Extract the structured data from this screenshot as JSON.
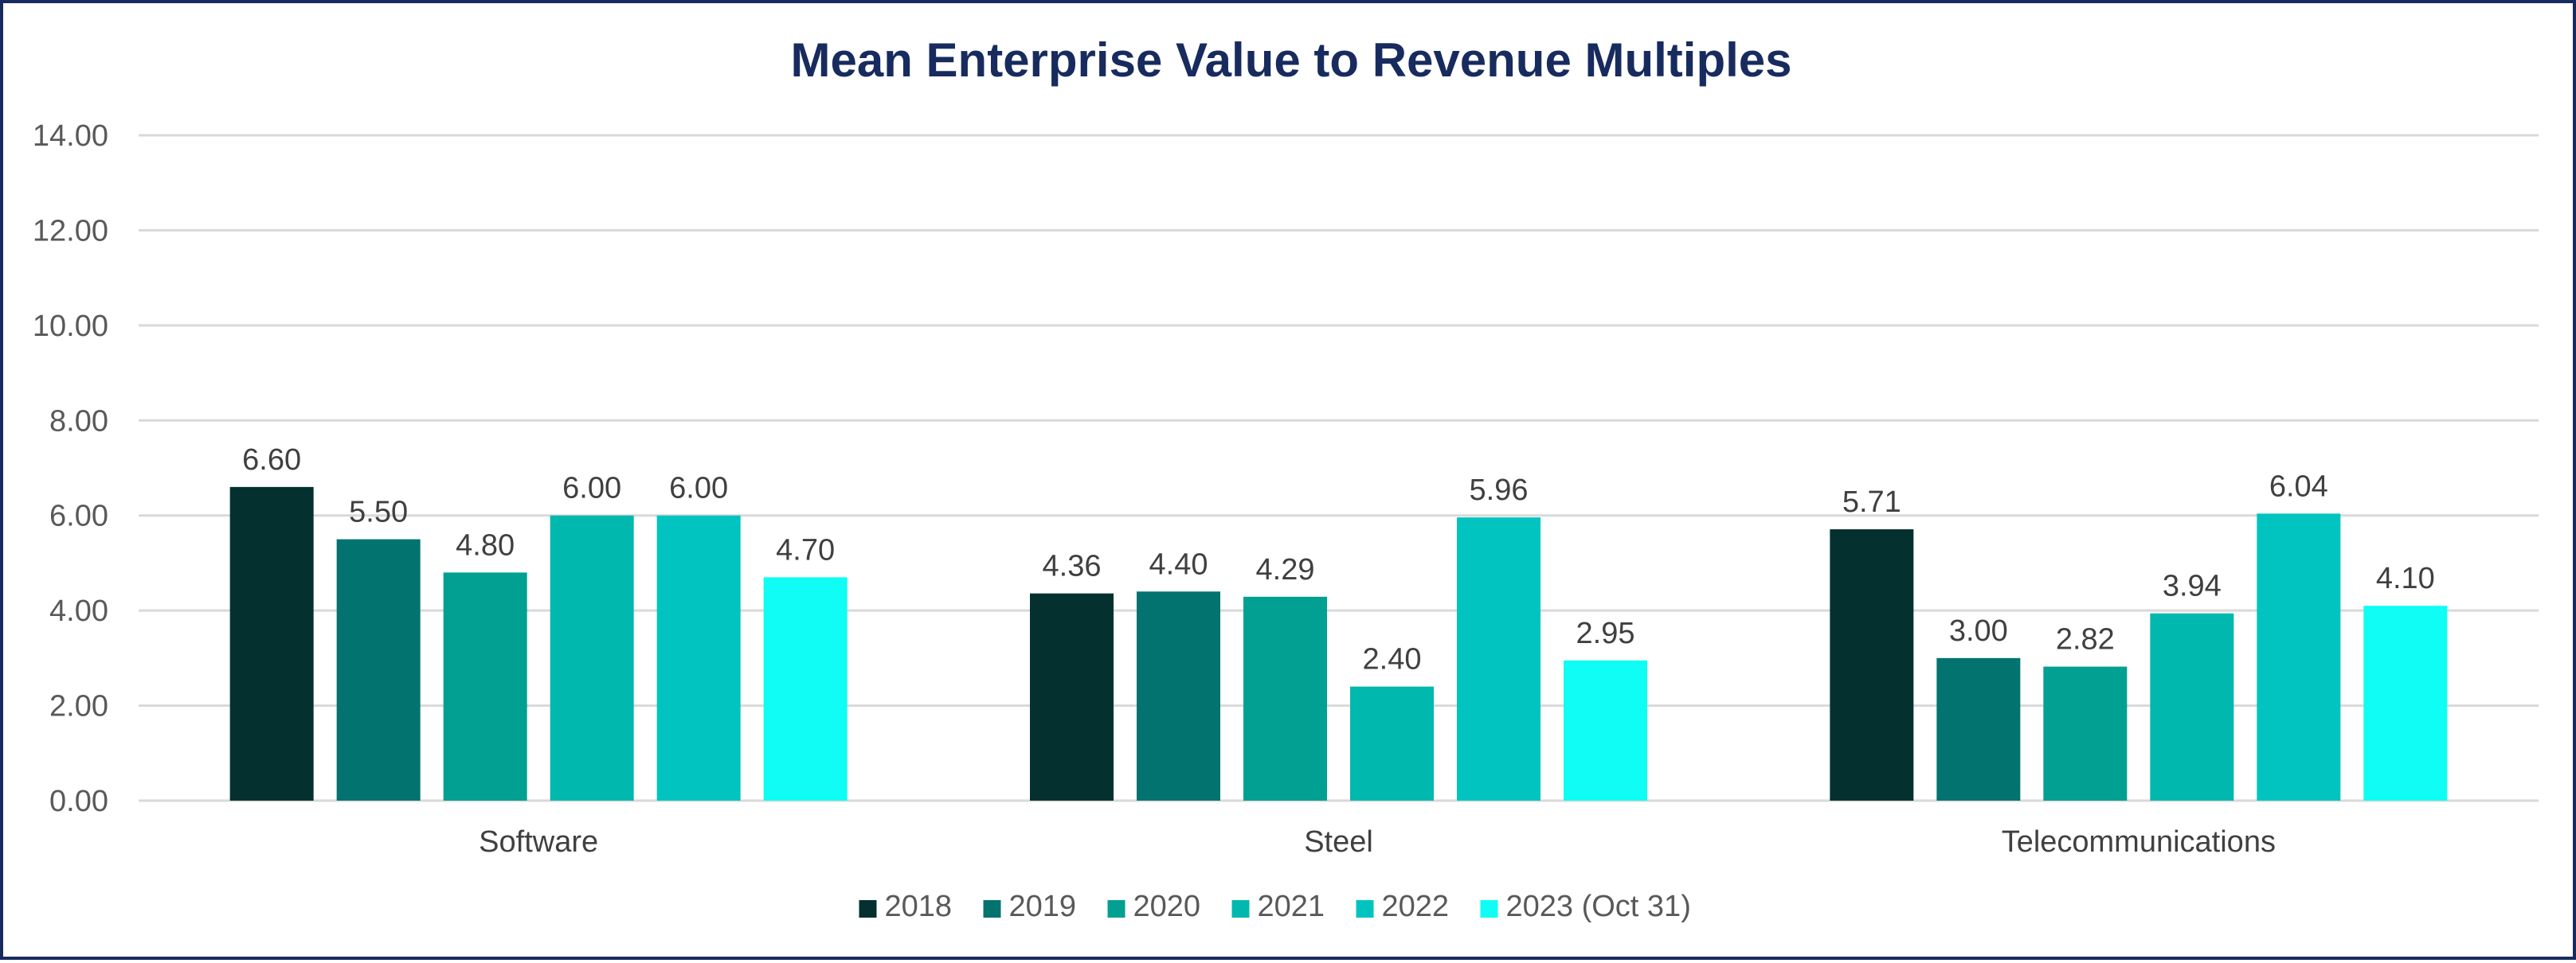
{
  "chart_data": {
    "type": "bar",
    "title": "Mean Enterprise Value to Revenue Multiples",
    "xlabel": "",
    "ylabel": "",
    "ylim": [
      0,
      14
    ],
    "yticks": [
      0,
      2,
      4,
      6,
      8,
      10,
      12,
      14
    ],
    "ytick_labels": [
      "0.00",
      "2.00",
      "4.00",
      "6.00",
      "8.00",
      "10.00",
      "12.00",
      "14.00"
    ],
    "grid": true,
    "legend_position": "bottom",
    "categories": [
      "Software",
      "Steel",
      "Telecommunications"
    ],
    "series": [
      {
        "name": "2018",
        "color": "#04312f",
        "values": [
          6.6,
          4.36,
          5.71
        ],
        "labels": [
          "6.60",
          "4.36",
          "5.71"
        ]
      },
      {
        "name": "2019",
        "color": "#037370",
        "values": [
          5.5,
          4.4,
          3.0
        ],
        "labels": [
          "5.50",
          "4.40",
          "3.00"
        ]
      },
      {
        "name": "2020",
        "color": "#01a092",
        "values": [
          4.8,
          4.29,
          2.82
        ],
        "labels": [
          "4.80",
          "4.29",
          "2.82"
        ]
      },
      {
        "name": "2021",
        "color": "#00b8ae",
        "values": [
          6.0,
          2.4,
          3.94
        ],
        "labels": [
          "6.00",
          "2.40",
          "3.94"
        ]
      },
      {
        "name": "2022",
        "color": "#01c4c0",
        "values": [
          6.0,
          5.96,
          6.04
        ],
        "labels": [
          "6.00",
          "5.96",
          "6.04"
        ]
      },
      {
        "name": "2023 (Oct 31)",
        "color": "#0ffdf4",
        "values": [
          4.7,
          2.95,
          4.1
        ],
        "labels": [
          "4.70",
          "2.95",
          "4.10"
        ]
      }
    ]
  },
  "colors": {
    "frame_border": "#172b5e",
    "title": "#172b5e",
    "gridline": "#d9d9d9"
  }
}
